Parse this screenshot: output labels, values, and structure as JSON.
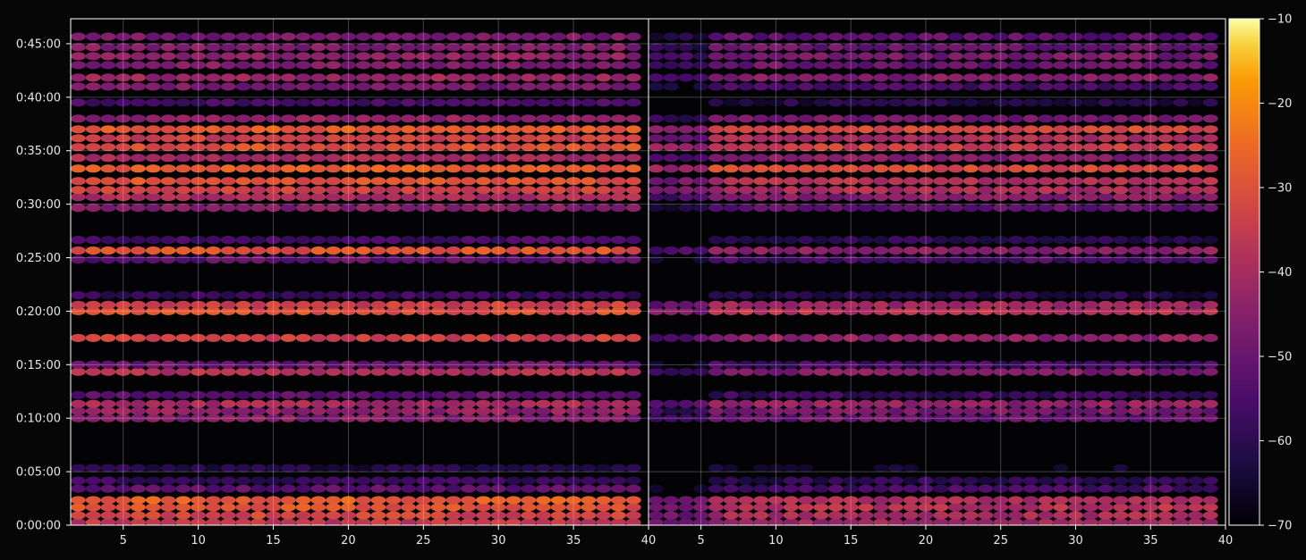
{
  "chart_data": {
    "type": "heatmap",
    "title": "",
    "xlabel": "",
    "ylabel": "",
    "grid": true,
    "colormap": "inferno",
    "panels": [
      {
        "x_range": [
          1.5,
          40
        ],
        "x_ticks": [
          "5",
          "10",
          "15",
          "20",
          "25",
          "30",
          "35",
          "40"
        ]
      },
      {
        "x_range": [
          1.5,
          40
        ],
        "x_ticks": [
          "5",
          "10",
          "15",
          "20",
          "25",
          "30",
          "35",
          "40"
        ]
      }
    ],
    "y_range_seconds": [
      0,
      2840
    ],
    "y_tick_seconds": [
      0,
      300,
      600,
      900,
      1200,
      1500,
      1800,
      2100,
      2400,
      2700
    ],
    "y_ticks": [
      "0:00:00",
      "0:05:00",
      "0:10:00",
      "0:15:00",
      "0:20:00",
      "0:25:00",
      "0:30:00",
      "0:35:00",
      "0:40:00",
      "0:45:00"
    ],
    "colorbar": {
      "range": [
        -70,
        -10
      ],
      "ticks": [
        "−10",
        "−20",
        "−30",
        "−40",
        "−50",
        "−60",
        "−70"
      ],
      "tick_values": [
        -10,
        -20,
        -30,
        -40,
        -50,
        -60,
        -70
      ]
    },
    "bands": [
      {
        "t": 15,
        "l": -36,
        "r": -42
      },
      {
        "t": 55,
        "l": -33,
        "r": -40
      },
      {
        "t": 100,
        "l": -30,
        "r": -38
      },
      {
        "t": 140,
        "l": -28,
        "r": -40
      },
      {
        "t": 205,
        "l": -52,
        "r": -56
      },
      {
        "t": 250,
        "l": -58,
        "r": -60
      },
      {
        "t": 320,
        "l": -62,
        "r": -66
      },
      {
        "t": 600,
        "l": -46,
        "r": -50
      },
      {
        "t": 640,
        "l": -44,
        "r": -48
      },
      {
        "t": 680,
        "l": -40,
        "r": -44
      },
      {
        "t": 730,
        "l": -52,
        "r": -58
      },
      {
        "t": 860,
        "l": -38,
        "r": -46
      },
      {
        "t": 900,
        "l": -50,
        "r": -56
      },
      {
        "t": 1050,
        "l": -34,
        "r": -44
      },
      {
        "t": 1200,
        "l": -30,
        "r": -38
      },
      {
        "t": 1235,
        "l": -34,
        "r": -42
      },
      {
        "t": 1290,
        "l": -58,
        "r": -62
      },
      {
        "t": 1490,
        "l": -52,
        "r": -56
      },
      {
        "t": 1540,
        "l": -30,
        "r": -44
      },
      {
        "t": 1600,
        "l": -56,
        "r": -60
      },
      {
        "t": 1780,
        "l": -46,
        "r": -52
      },
      {
        "t": 1840,
        "l": -40,
        "r": -46
      },
      {
        "t": 1880,
        "l": -34,
        "r": -40
      },
      {
        "t": 1930,
        "l": -30,
        "r": -38
      },
      {
        "t": 2000,
        "l": -28,
        "r": -32
      },
      {
        "t": 2060,
        "l": -40,
        "r": -46
      },
      {
        "t": 2120,
        "l": -30,
        "r": -34
      },
      {
        "t": 2170,
        "l": -34,
        "r": -40
      },
      {
        "t": 2220,
        "l": -28,
        "r": -32
      },
      {
        "t": 2280,
        "l": -44,
        "r": -48
      },
      {
        "t": 2370,
        "l": -56,
        "r": -62
      },
      {
        "t": 2460,
        "l": -48,
        "r": -56
      },
      {
        "t": 2510,
        "l": -42,
        "r": -46
      },
      {
        "t": 2580,
        "l": -46,
        "r": -50
      },
      {
        "t": 2630,
        "l": -44,
        "r": -48
      },
      {
        "t": 2680,
        "l": -46,
        "r": -50
      },
      {
        "t": 2740,
        "l": -48,
        "r": -52
      }
    ]
  }
}
